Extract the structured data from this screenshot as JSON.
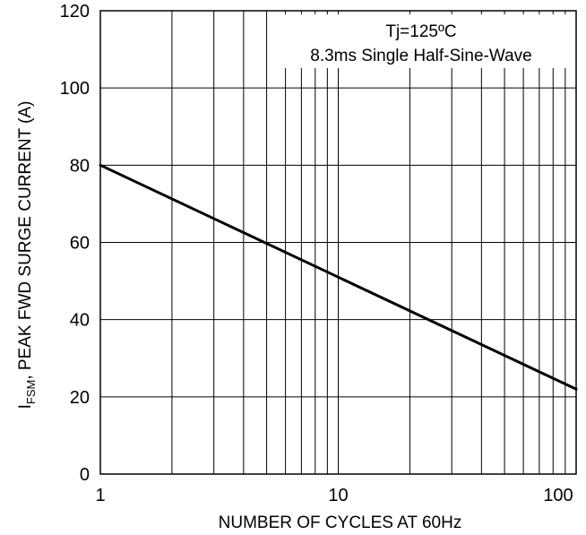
{
  "chart_data": {
    "type": "line",
    "xscale": "log",
    "xlim": [
      1,
      100
    ],
    "ylim": [
      0,
      120
    ],
    "x_ticks": [
      1,
      10,
      100
    ],
    "y_ticks": [
      0,
      20,
      40,
      60,
      80,
      100,
      120
    ],
    "x_tick_labels": [
      "1",
      "10",
      "100"
    ],
    "y_tick_labels": [
      "0",
      "20",
      "40",
      "60",
      "80",
      "100",
      "120"
    ],
    "xlabel": "NUMBER OF CYCLES AT 60Hz",
    "ylabel": {
      "prefix": "I",
      "subscript": "FSM",
      "rest": ", PEAK FWD SURGE CURRENT (A)"
    },
    "annotations": [
      "Tj=125ºC",
      "8.3ms Single Half-Sine-Wave"
    ],
    "grid": true,
    "legend": "none",
    "series": [
      {
        "x": [
          1,
          100
        ],
        "y": [
          80,
          22
        ],
        "color": "#000000"
      }
    ]
  }
}
